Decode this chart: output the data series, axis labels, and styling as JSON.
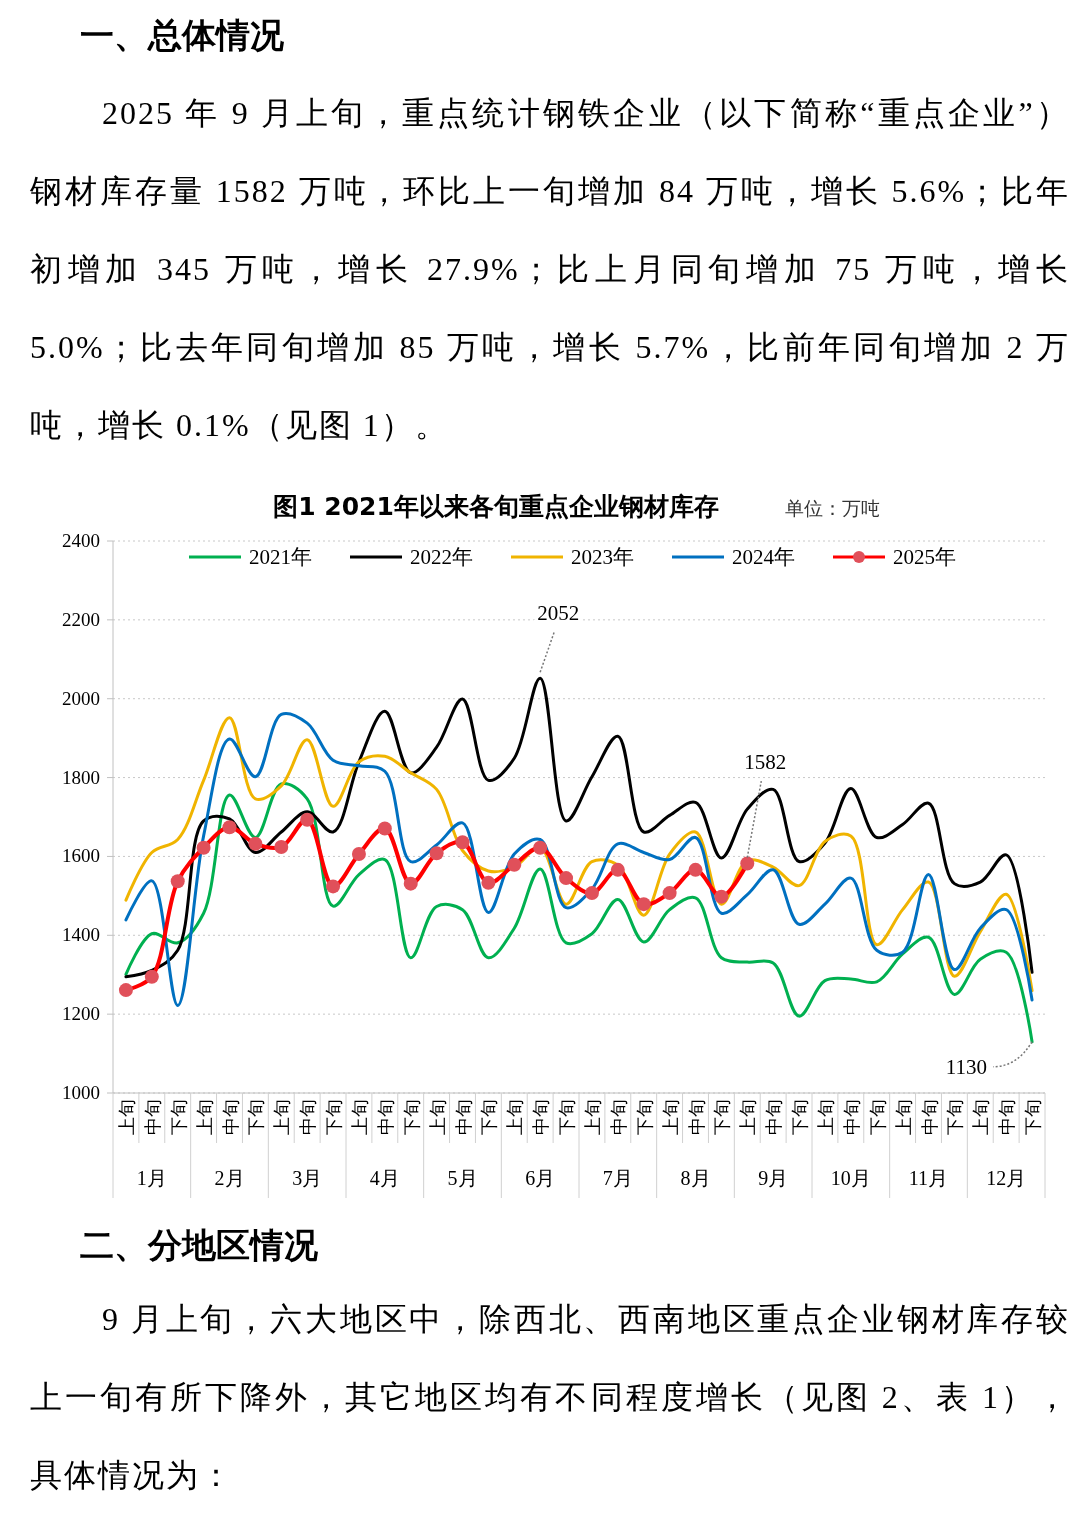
{
  "chart_data": {
    "type": "line",
    "title": "图1  2021年以来各旬重点企业钢材库存",
    "subtitle": "单位：万吨",
    "annotations": [
      "一、总体情况",
      "2025 年 9 月上旬，重点统计钢铁企业（以下简称“重点企业”）钢材库存量 1582 万吨，环比上一旬增加 84 万吨，增长 5.6%；比年初增加 345 万吨，增长 27.9%；比上月同旬增加 75 万吨，增长 5.0%；比去年同旬增加 85 万吨，增长 5.7%，比前年同旬增加 2 万吨，增长 0.1%（见图 1）。",
      "二、分地区情况",
      "9 月上旬，六大地区中，除西北、西南地区重点企业钢材库存较上一旬有所下降外，其它地区均有不同程度增长（见图 2、表 1），具体情况为：",
      "1月",
      "2月",
      "3月",
      "4月",
      "5月",
      "6月",
      "7月",
      "8月",
      "9月",
      "10月",
      "11月",
      "12月"
    ],
    "categories": [
      "上旬",
      "中旬",
      "下旬",
      "上旬",
      "中旬",
      "下旬",
      "上旬",
      "中旬",
      "下旬",
      "上旬",
      "中旬",
      "下旬",
      "上旬",
      "中旬",
      "下旬",
      "上旬",
      "中旬",
      "下旬",
      "上旬",
      "中旬",
      "下旬",
      "上旬",
      "中旬",
      "下旬",
      "上旬",
      "中旬",
      "下旬",
      "上旬",
      "中旬",
      "下旬",
      "上旬",
      "中旬",
      "下旬",
      "上旬",
      "中旬",
      "下旬"
    ],
    "series": [
      {
        "name": "2021年",
        "color": "#00b050",
        "values": [
          1301,
          1404,
          1381,
          1456,
          1756,
          1648,
          1784,
          1746,
          1474,
          1554,
          1592,
          1343,
          1473,
          1465,
          1343,
          1418,
          1568,
          1381,
          1404,
          1491,
          1383,
          1465,
          1495,
          1343,
          1332,
          1330,
          1195,
          1285,
          1289,
          1282,
          1353,
          1395,
          1250,
          1339,
          1357,
          1130
        ],
        "value_labels": [
          null,
          null,
          null,
          null,
          null,
          null,
          null,
          null,
          null,
          null,
          null,
          null,
          null,
          null,
          null,
          null,
          null,
          null,
          null,
          null,
          null,
          null,
          null,
          null,
          null,
          null,
          null,
          null,
          null,
          null,
          null,
          null,
          null,
          null,
          null,
          "1130"
        ]
      },
      {
        "name": "2022年",
        "color": "#000000",
        "values": [
          1295,
          1311,
          1362,
          1690,
          1695,
          1610,
          1662,
          1713,
          1662,
          1840,
          1968,
          1812,
          1877,
          1999,
          1793,
          1849,
          2052,
          1690,
          1802,
          1905,
          1662,
          1704,
          1737,
          1596,
          1720,
          1770,
          1587,
          1634,
          1772,
          1648,
          1681,
          1735,
          1531,
          1535,
          1604,
          1306
        ],
        "value_labels": [
          null,
          null,
          null,
          null,
          null,
          null,
          null,
          null,
          null,
          null,
          null,
          null,
          null,
          null,
          null,
          null,
          "2052",
          null,
          null,
          null,
          null,
          null,
          null,
          null,
          null,
          null,
          null,
          null,
          null,
          null,
          null,
          null,
          null,
          null,
          null,
          null
        ]
      },
      {
        "name": "2023年",
        "color": "#f0b400",
        "values": [
          1489,
          1610,
          1643,
          1793,
          1952,
          1746,
          1779,
          1896,
          1727,
          1840,
          1854,
          1812,
          1770,
          1615,
          1563,
          1573,
          1624,
          1479,
          1587,
          1578,
          1451,
          1606,
          1662,
          1479,
          1589,
          1573,
          1526,
          1638,
          1652,
          1376,
          1465,
          1535,
          1296,
          1409,
          1504,
          1260
        ]
      },
      {
        "name": "2024年",
        "color": "#0070c0",
        "values": [
          1439,
          1538,
          1222,
          1652,
          1898,
          1802,
          1960,
          1938,
          1844,
          1830,
          1816,
          1587,
          1629,
          1685,
          1458,
          1606,
          1643,
          1470,
          1517,
          1632,
          1610,
          1592,
          1648,
          1456,
          1503,
          1566,
          1428,
          1479,
          1545,
          1362,
          1357,
          1554,
          1313,
          1418,
          1465,
          1236
        ]
      },
      {
        "name": "2025年",
        "color": "#ff0000",
        "marker": "circle",
        "values": [
          1261,
          1295,
          1537,
          1622,
          1674,
          1632,
          1624,
          1693,
          1524,
          1606,
          1671,
          1531,
          1608,
          1636,
          1533,
          1579,
          1622,
          1545,
          1507,
          1566,
          1479,
          1507,
          1566,
          1498,
          1582,
          null,
          null,
          null,
          null,
          null,
          null,
          null,
          null,
          null,
          null,
          null
        ],
        "value_labels": [
          null,
          null,
          null,
          null,
          null,
          null,
          null,
          null,
          null,
          null,
          null,
          null,
          null,
          null,
          null,
          null,
          null,
          null,
          null,
          null,
          null,
          null,
          null,
          null,
          "1582",
          null,
          null,
          null,
          null,
          null,
          null,
          null,
          null,
          null,
          null,
          null
        ]
      }
    ],
    "ylim": [
      1000,
      2400
    ],
    "yticks": [
      1000,
      1200,
      1400,
      1600,
      1800,
      2000,
      2200,
      2400
    ],
    "grid": "y",
    "legend": "top"
  }
}
